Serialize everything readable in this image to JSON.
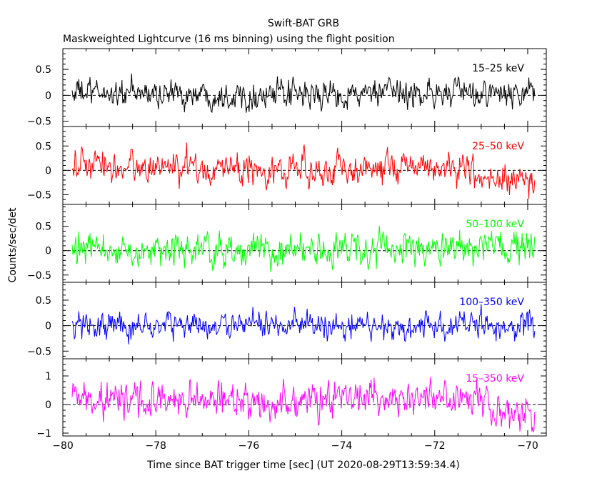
{
  "chart_data": {
    "type": "line",
    "title": "Swift-BAT GRB",
    "subtitle": "Maskweighted Lightcurve (16 ms binning) using the flight position",
    "xlabel": "Time since BAT trigger time [sec] (UT 2020-08-29T13:59:34.4)",
    "ylabel": "Counts/sec/det",
    "xlim": [
      -80,
      -69.6
    ],
    "x_range_data": [
      -79.8,
      -69.85
    ],
    "x_ticks": [
      -80,
      -78,
      -76,
      -74,
      -72,
      -70
    ],
    "x_tick_labels": [
      "−80",
      "−78",
      "−76",
      "−74",
      "−72",
      "−70"
    ],
    "grid": false,
    "zero_line": "dashed",
    "panels": [
      {
        "name": "15–25 keV",
        "color": "#000000",
        "ylim": [
          -0.6,
          0.9
        ],
        "y_ticks": [
          -0.5,
          0,
          0.5
        ],
        "y_tick_labels": [
          "−0.5",
          "0",
          "0.5"
        ],
        "noise_amplitude": 0.18,
        "trend": [
          [
            -79.8,
            0.05
          ],
          [
            -75,
            0.0
          ],
          [
            -72,
            0.05
          ],
          [
            -69.85,
            0.0
          ]
        ]
      },
      {
        "name": "25–50 keV",
        "color": "#ff0000",
        "ylim": [
          -0.7,
          0.9
        ],
        "y_ticks": [
          -0.5,
          0,
          0.5
        ],
        "y_tick_labels": [
          "−0.5",
          "0",
          "0.5"
        ],
        "noise_amplitude": 0.22,
        "trend": [
          [
            -79.8,
            0.1
          ],
          [
            -75,
            0.0
          ],
          [
            -72,
            0.1
          ],
          [
            -69.85,
            -0.3
          ]
        ]
      },
      {
        "name": "50–100 keV",
        "color": "#00ff00",
        "ylim": [
          -0.65,
          0.95
        ],
        "y_ticks": [
          -0.5,
          0,
          0.5
        ],
        "y_tick_labels": [
          "−0.5",
          "0",
          "0.5"
        ],
        "noise_amplitude": 0.22,
        "trend": [
          [
            -79.8,
            0.0
          ],
          [
            -75,
            0.0
          ],
          [
            -72,
            0.05
          ],
          [
            -69.85,
            0.0
          ]
        ]
      },
      {
        "name": "100–350 keV",
        "color": "#0000ff",
        "ylim": [
          -0.65,
          0.85
        ],
        "y_ticks": [
          -0.5,
          0,
          0.5
        ],
        "y_tick_labels": [
          "−0.5",
          "0",
          "0.5"
        ],
        "noise_amplitude": 0.18,
        "trend": [
          [
            -79.8,
            0.0
          ],
          [
            -75,
            0.0
          ],
          [
            -72,
            0.0
          ],
          [
            -69.85,
            0.0
          ]
        ]
      },
      {
        "name": "15–350 keV",
        "color": "#ff00ff",
        "ylim": [
          -1.1,
          1.6
        ],
        "y_ticks": [
          -1,
          0,
          1
        ],
        "y_tick_labels": [
          "−1",
          "0",
          "1"
        ],
        "noise_amplitude": 0.42,
        "trend": [
          [
            -79.8,
            0.2
          ],
          [
            -75,
            0.1
          ],
          [
            -72,
            0.3
          ],
          [
            -69.85,
            -0.4
          ]
        ]
      }
    ]
  }
}
